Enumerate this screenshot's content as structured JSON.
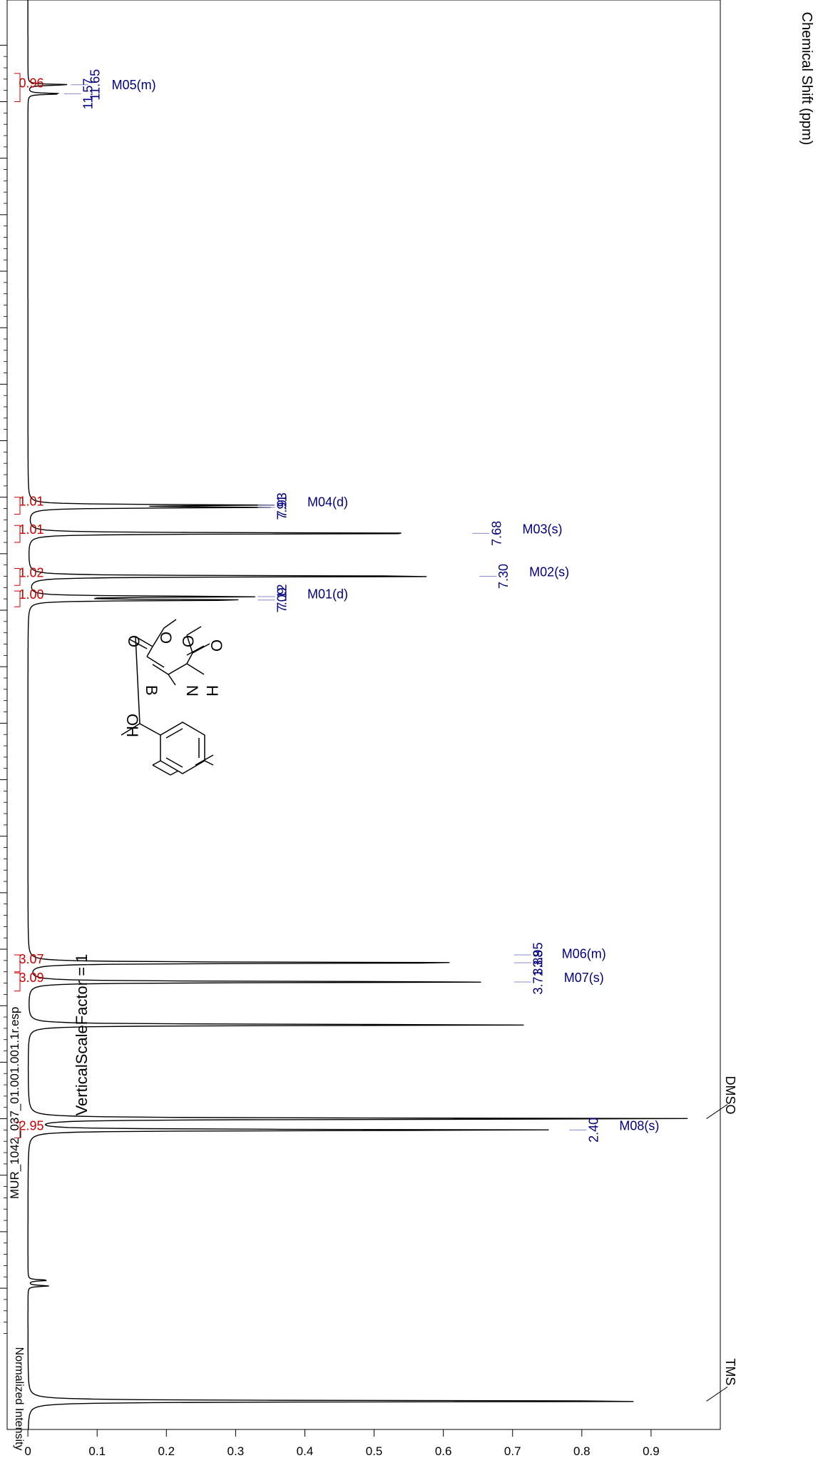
{
  "chart_data": {
    "type": "line",
    "file_name": "MUR_1042_037_01.001.001.1r.esp",
    "xlabel": "Chemical Shift (ppm)",
    "ylabel": "Normalized Intensity",
    "xlim": [
      12.4,
      -0.25
    ],
    "ylim": [
      -0.03,
      1.0
    ],
    "x_ticks": [
      "12.0",
      "11.5",
      "11.0",
      "10.5",
      "10.0",
      "9.5",
      "9.0",
      "8.5",
      "8.0",
      "7.5",
      "7.0",
      "6.5",
      "6.0",
      "5.5",
      "5.0",
      "4.5",
      "4.0",
      "3.5",
      "3.0",
      "2.5",
      "2.0",
      "1.5",
      "1.0"
    ],
    "y_ticks": [
      "0",
      "0.1",
      "0.2",
      "0.3",
      "0.4",
      "0.5",
      "0.6",
      "0.7",
      "0.8",
      "0.9"
    ],
    "annotation": "VerticalScaleFactor = 1",
    "solvent_labels": [
      {
        "text": "TMS",
        "ppm": 0.0
      },
      {
        "text": "DMSO",
        "ppm": 2.5
      }
    ],
    "peaks": [
      {
        "ppm": 11.65,
        "height": 0.06
      },
      {
        "ppm": 11.57,
        "height": 0.05
      },
      {
        "ppm": 7.93,
        "height": 0.33
      },
      {
        "ppm": 7.91,
        "height": 0.33
      },
      {
        "ppm": 7.68,
        "height": 0.64
      },
      {
        "ppm": 7.3,
        "height": 0.65
      },
      {
        "ppm": 7.12,
        "height": 0.33
      },
      {
        "ppm": 7.09,
        "height": 0.33
      },
      {
        "ppm": 3.88,
        "height": 0.7
      },
      {
        "ppm": 3.71,
        "height": 0.7
      },
      {
        "ppm": 3.33,
        "height": 0.74
      },
      {
        "ppm": 2.5,
        "height": 1.0
      },
      {
        "ppm": 2.4,
        "height": 0.78
      },
      {
        "ppm": 1.07,
        "height": 0.03
      },
      {
        "ppm": 1.02,
        "height": 0.03
      },
      {
        "ppm": 0.0,
        "height": 1.0
      }
    ],
    "peak_labels": [
      {
        "text": "11.65",
        "ppm": 11.65
      },
      {
        "text": "11.57",
        "ppm": 11.57
      },
      {
        "text": "7.93",
        "ppm": 7.93
      },
      {
        "text": "7.91",
        "ppm": 7.91
      },
      {
        "text": "7.68",
        "ppm": 7.68
      },
      {
        "text": "7.30",
        "ppm": 7.3
      },
      {
        "text": "7.12",
        "ppm": 7.12
      },
      {
        "text": "7.09",
        "ppm": 7.09
      },
      {
        "text": "3.95",
        "ppm": 3.95
      },
      {
        "text": "3.88",
        "ppm": 3.88
      },
      {
        "text": "3.71",
        "ppm": 3.71
      },
      {
        "text": "2.40",
        "ppm": 2.4
      }
    ],
    "multiplets": [
      {
        "text": "M05(m)",
        "ppm": 11.61
      },
      {
        "text": "M04(d)",
        "ppm": 7.92
      },
      {
        "text": "M03(s)",
        "ppm": 7.68
      },
      {
        "text": "M02(s)",
        "ppm": 7.3
      },
      {
        "text": "M01(d)",
        "ppm": 7.105
      },
      {
        "text": "M06(m)",
        "ppm": 3.92
      },
      {
        "text": "M07(s)",
        "ppm": 3.71
      },
      {
        "text": "M08(s)",
        "ppm": 2.4
      }
    ],
    "integrals": [
      {
        "text": "0.96",
        "from": 11.75,
        "to": 11.5
      },
      {
        "text": "1.01",
        "from": 8.0,
        "to": 7.85
      },
      {
        "text": "1.01",
        "from": 7.75,
        "to": 7.6
      },
      {
        "text": "1.02",
        "from": 7.37,
        "to": 7.22
      },
      {
        "text": "1.00",
        "from": 7.17,
        "to": 7.03
      },
      {
        "text": "3.07",
        "from": 3.95,
        "to": 3.8
      },
      {
        "text": "3.09",
        "from": 3.79,
        "to": 3.63
      },
      {
        "text": "2.95",
        "from": 2.47,
        "to": 2.33
      }
    ],
    "molecule_labels": {
      "oh": "OH",
      "b": "B",
      "n": "N",
      "h": "H",
      "o": "O"
    }
  }
}
